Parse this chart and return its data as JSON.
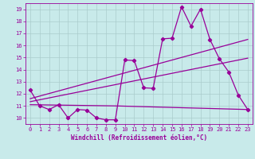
{
  "xlabel": "Windchill (Refroidissement éolien,°C)",
  "bg_color": "#c8eaea",
  "line_color": "#990099",
  "grid_color": "#aacccc",
  "xlim": [
    -0.5,
    23.5
  ],
  "ylim": [
    9.5,
    19.5
  ],
  "yticks": [
    10,
    11,
    12,
    13,
    14,
    15,
    16,
    17,
    18,
    19
  ],
  "xticks": [
    0,
    1,
    2,
    3,
    4,
    5,
    6,
    7,
    8,
    9,
    10,
    11,
    12,
    13,
    14,
    15,
    16,
    17,
    18,
    19,
    20,
    21,
    22,
    23
  ],
  "zigzag_x": [
    0,
    1,
    2,
    3,
    4,
    5,
    6,
    7,
    8,
    9,
    10,
    11,
    12,
    13,
    14,
    15,
    16,
    17,
    18,
    19,
    20,
    21,
    22,
    23
  ],
  "zigzag_y": [
    12.3,
    11.0,
    10.7,
    11.1,
    10.0,
    10.7,
    10.65,
    10.0,
    9.85,
    9.85,
    14.8,
    14.75,
    12.5,
    12.45,
    16.55,
    16.6,
    19.2,
    17.6,
    19.0,
    16.5,
    14.9,
    13.8,
    11.9,
    10.7
  ],
  "trend1_x": [
    0,
    23
  ],
  "trend1_y": [
    11.6,
    16.5
  ],
  "trend2_x": [
    0,
    23
  ],
  "trend2_y": [
    11.35,
    14.95
  ],
  "trend3_x": [
    0,
    9,
    23
  ],
  "trend3_y": [
    11.1,
    11.0,
    10.7
  ]
}
